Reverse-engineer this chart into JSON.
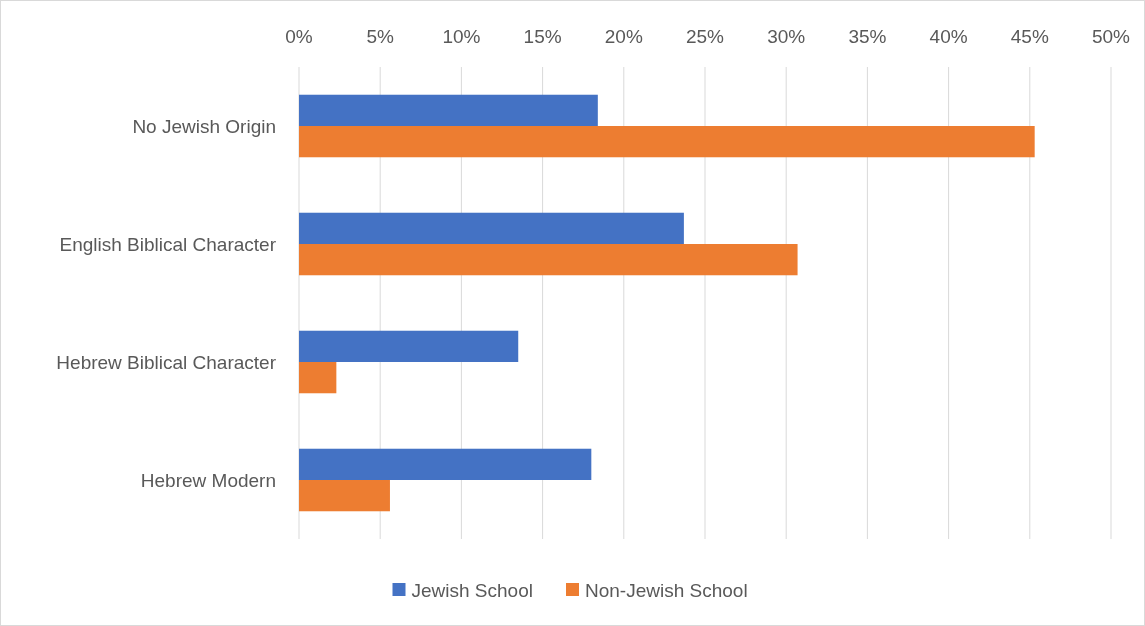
{
  "chart_data": {
    "type": "bar",
    "orientation": "horizontal",
    "categories": [
      "No Jewish Origin",
      "English Biblical Character",
      "Hebrew Biblical Character",
      "Hebrew Modern"
    ],
    "series": [
      {
        "name": "Jewish School",
        "color": "#4472c4",
        "values": [
          18.4,
          23.7,
          13.5,
          18.0
        ]
      },
      {
        "name": "Non-Jewish School",
        "color": "#ed7d31",
        "values": [
          45.3,
          30.7,
          2.3,
          5.6
        ]
      }
    ],
    "xlim": [
      0,
      50
    ],
    "xticks": [
      {
        "value": 0,
        "label": "0%"
      },
      {
        "value": 5,
        "label": "5%"
      },
      {
        "value": 10,
        "label": "10%"
      },
      {
        "value": 15,
        "label": "15%"
      },
      {
        "value": 20,
        "label": "20%"
      },
      {
        "value": 25,
        "label": "25%"
      },
      {
        "value": 30,
        "label": "30%"
      },
      {
        "value": 35,
        "label": "35%"
      },
      {
        "value": 40,
        "label": "40%"
      },
      {
        "value": 45,
        "label": "45%"
      },
      {
        "value": 50,
        "label": "50%"
      }
    ],
    "grid": "x",
    "legend": "bottom"
  }
}
